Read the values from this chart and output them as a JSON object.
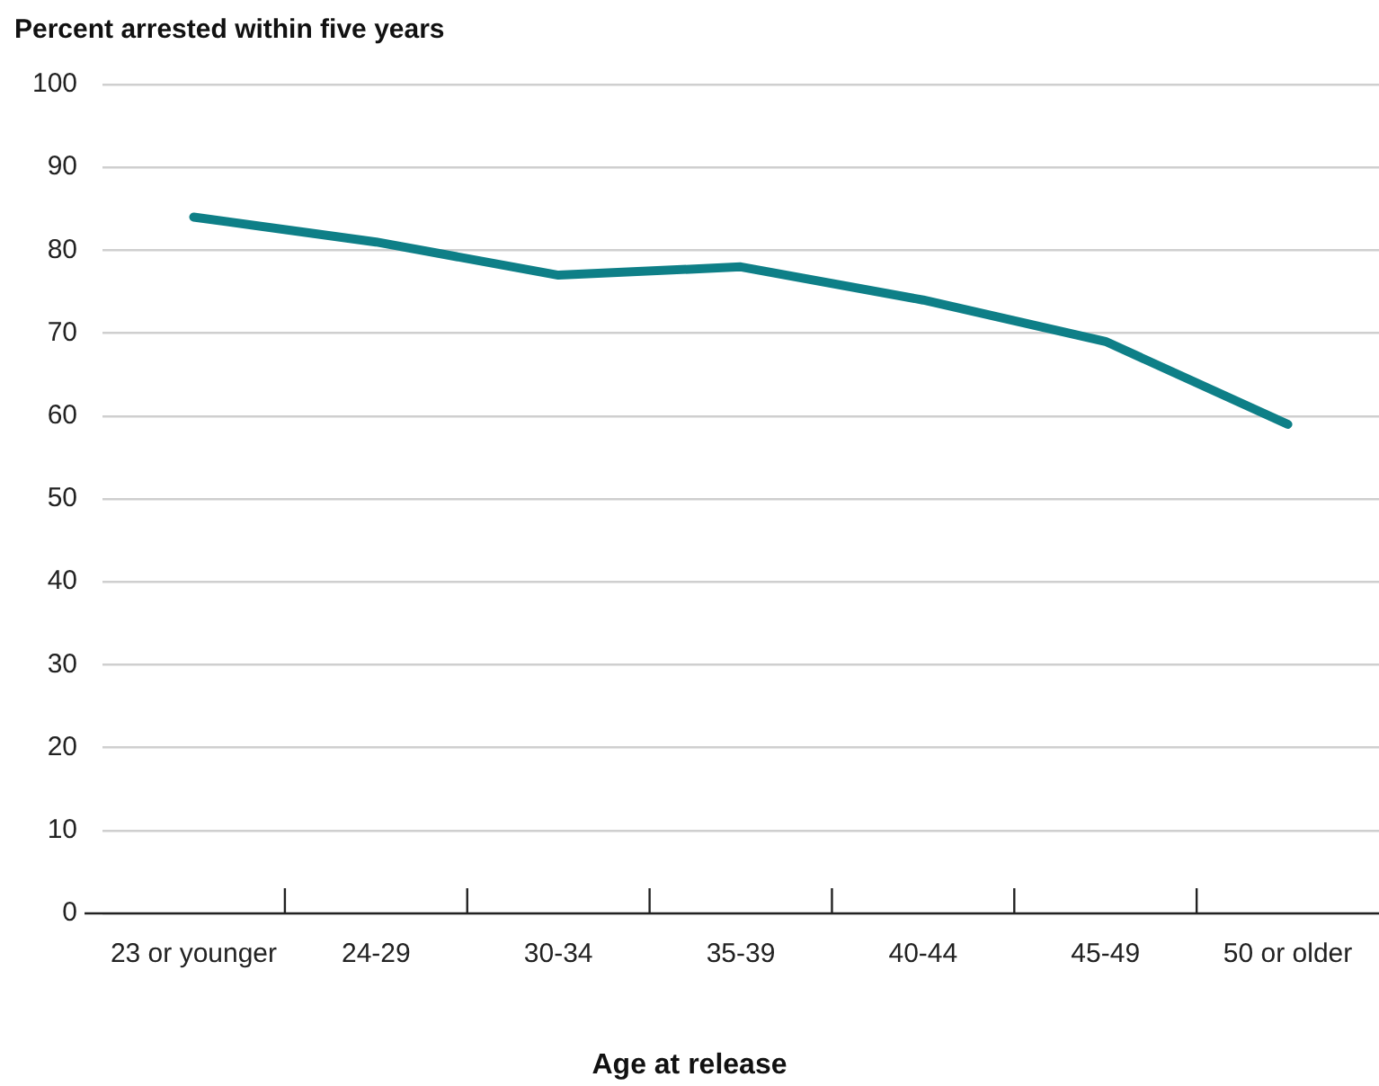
{
  "chart_data": {
    "type": "line",
    "ylabel": "Percent arrested within five years",
    "xlabel": "Age at release",
    "categories": [
      "23 or younger",
      "24-29",
      "30-34",
      "35-39",
      "40-44",
      "45-49",
      "50 or older"
    ],
    "series": [
      {
        "color": "#0e7f87",
        "values": [
          84,
          81,
          77,
          78,
          74,
          69,
          59
        ]
      }
    ],
    "ylim": [
      0,
      100
    ],
    "yticks": [
      0,
      10,
      20,
      30,
      40,
      50,
      60,
      70,
      80,
      90,
      100
    ],
    "grid": "y",
    "legend": false,
    "marker": "none",
    "line_style": "solid"
  }
}
